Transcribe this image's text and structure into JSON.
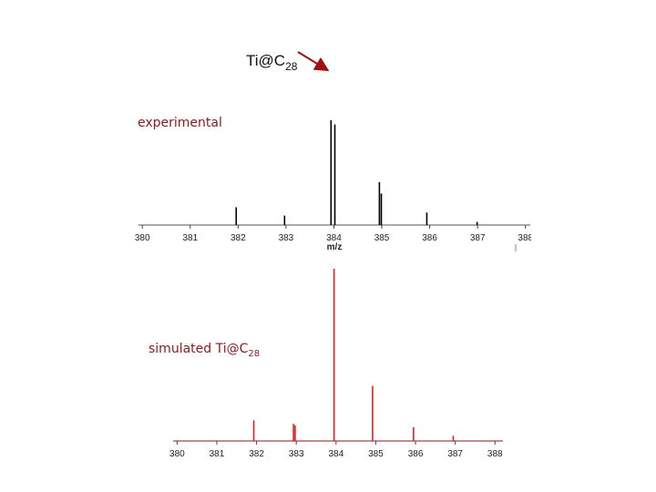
{
  "title": "Ti@C",
  "title_subscript": "28",
  "chart_data": [
    {
      "type": "stem",
      "label": "experimental",
      "xlabel": "m/z",
      "color": "#000000",
      "x": [
        381.96,
        382.97,
        383.94,
        384.02,
        384.95,
        384.99,
        385.94,
        386.99
      ],
      "values": [
        17,
        9,
        100,
        96,
        41,
        30,
        12,
        3
      ],
      "xlim": [
        379.92,
        388.1
      ],
      "xticks": [
        380,
        381,
        382,
        383,
        384,
        385,
        386,
        387,
        388
      ],
      "ylim": [
        0,
        100
      ]
    },
    {
      "type": "stem",
      "label": "simulated Ti@C",
      "label_subscript": "28",
      "color": "#e02020",
      "x": [
        381.93,
        382.93,
        382.97,
        383.95,
        384.92,
        385.95,
        386.95
      ],
      "values": [
        12,
        10,
        9,
        100,
        32,
        8,
        3
      ],
      "xlim": [
        379.9,
        388.2
      ],
      "xticks": [
        380,
        381,
        382,
        383,
        384,
        385,
        386,
        387,
        388
      ],
      "ylim": [
        0,
        100
      ]
    }
  ]
}
